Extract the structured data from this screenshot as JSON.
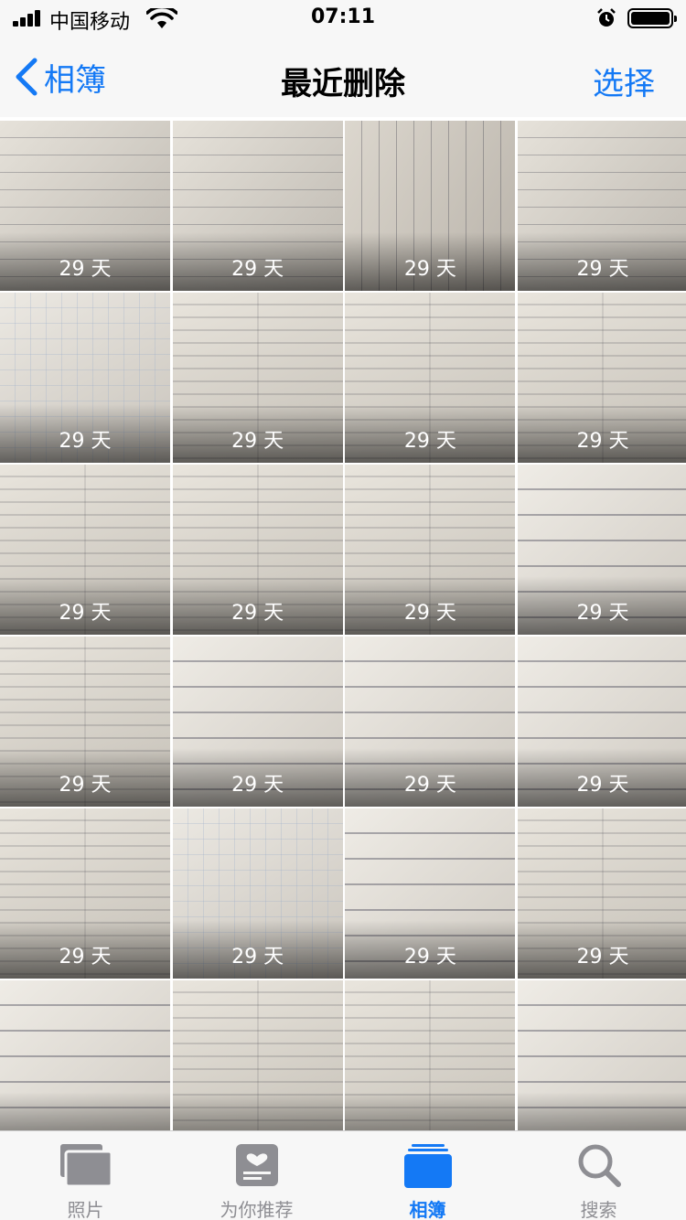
{
  "status_bar": {
    "carrier": "中国移动",
    "time": "07:11"
  },
  "nav": {
    "back_label": "相簿",
    "title": "最近删除",
    "select_label": "选择"
  },
  "photos": [
    "29 天",
    "29 天",
    "29 天",
    "29 天",
    "29 天",
    "29 天",
    "29 天",
    "29 天",
    "29 天",
    "29 天",
    "29 天",
    "29 天",
    "29 天",
    "29 天",
    "29 天",
    "29 天",
    "29 天",
    "29 天",
    "29 天",
    "29 天",
    "",
    "",
    "",
    ""
  ],
  "tabs": [
    {
      "label": "照片",
      "icon": "photos-icon",
      "active": false
    },
    {
      "label": "为你推荐",
      "icon": "for-you-icon",
      "active": false
    },
    {
      "label": "相簿",
      "icon": "albums-icon",
      "active": true
    },
    {
      "label": "搜索",
      "icon": "search-icon",
      "active": false
    }
  ],
  "colors": {
    "accent": "#1479f5",
    "tab_inactive": "#8e8e93",
    "bar_bg": "#f7f7f7"
  }
}
